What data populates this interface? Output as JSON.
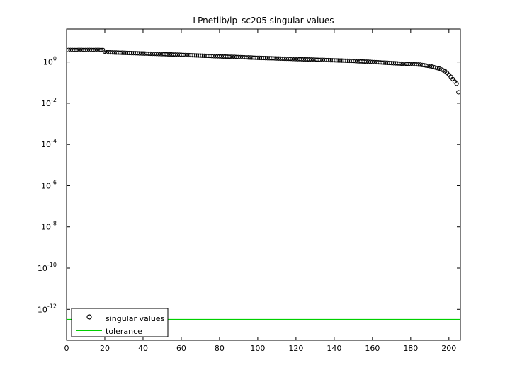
{
  "chart_data": {
    "type": "scatter",
    "title": "LPnetlib/lp_sc205 singular values",
    "xlabel": "",
    "ylabel": "",
    "x_scale": "linear",
    "y_scale": "log",
    "xlim": [
      0,
      206
    ],
    "ylim_log10": [
      -13.5,
      1.6
    ],
    "x_ticks": [
      0,
      20,
      40,
      60,
      80,
      100,
      120,
      140,
      160,
      180,
      200
    ],
    "y_tick_exponents": [
      0,
      -2,
      -4,
      -6,
      -8,
      -10,
      -12
    ],
    "y_tick_base": "10",
    "grid": false,
    "legend_position": "bottom-left",
    "series": [
      {
        "name": "singular values",
        "marker": "circle-open",
        "color": "#000000",
        "profile_index": [
          1,
          19,
          20,
          21,
          50,
          100,
          150,
          175,
          185,
          190,
          195,
          198,
          200,
          201,
          202,
          203,
          204,
          205
        ],
        "profile_log10": [
          0.58,
          0.58,
          0.5,
          0.47,
          0.38,
          0.2,
          0.05,
          -0.08,
          -0.13,
          -0.2,
          -0.32,
          -0.45,
          -0.62,
          -0.72,
          -0.83,
          -0.95,
          -1.05,
          -1.47
        ]
      },
      {
        "name": "tolerance",
        "style": "line",
        "color": "#00d000",
        "value_log10": -12.5
      }
    ]
  }
}
